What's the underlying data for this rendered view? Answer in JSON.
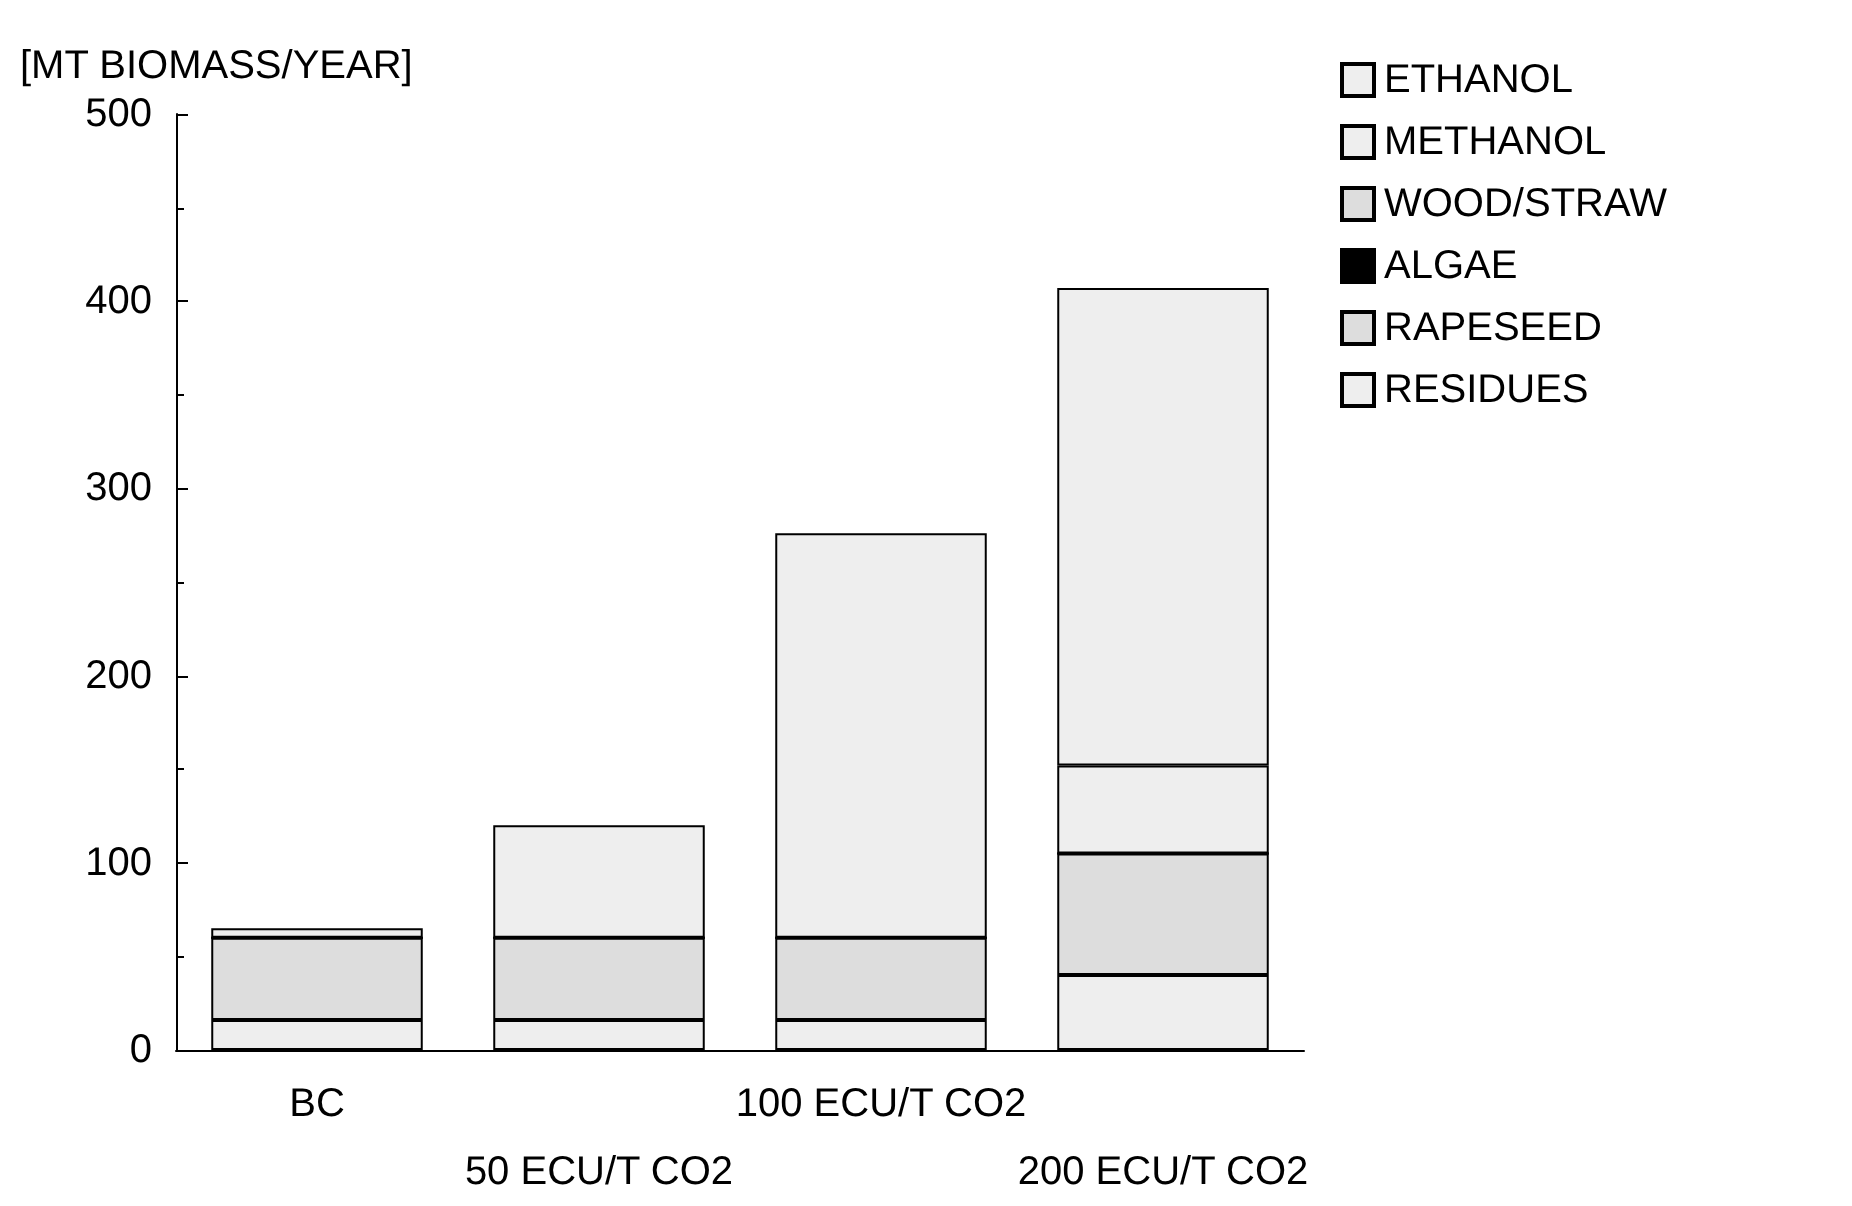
{
  "chart_data": {
    "type": "bar",
    "ylabel": "[MT BIOMASS/YEAR]",
    "categories": [
      "BC",
      "50 ECU/T CO2",
      "100 ECU/T CO2",
      "200 ECU/T CO2"
    ],
    "stacked": true,
    "series": [
      {
        "name": "RESIDUES",
        "color": "#eeeeee",
        "values": [
          16,
          16,
          16,
          40
        ]
      },
      {
        "name": "RAPESEED",
        "color": "#dddddd",
        "values": [
          44,
          44,
          44,
          65
        ]
      },
      {
        "name": "ALGAE",
        "color": "#000000",
        "values": [
          null,
          null,
          null,
          0
        ]
      },
      {
        "name": "WOOD/STRAW",
        "color": "#dddddd",
        "values": [
          0,
          0,
          0,
          0
        ]
      },
      {
        "name": "METHANOL",
        "color": "#eeeeee",
        "values": [
          0,
          0,
          0,
          47
        ]
      },
      {
        "name": "ETHANOL",
        "color": "#eeeeee",
        "values": [
          5,
          60,
          216,
          255
        ]
      }
    ],
    "ylim": [
      0,
      500
    ],
    "yticks": [
      0,
      100,
      200,
      300,
      400,
      500
    ],
    "grid": false,
    "legend": "top right"
  }
}
